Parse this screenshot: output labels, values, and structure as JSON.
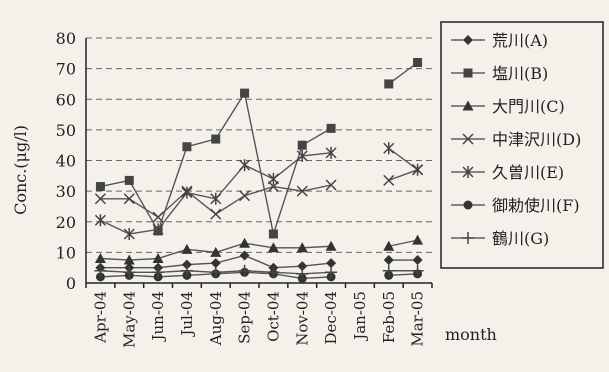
{
  "chart_data": {
    "type": "line",
    "ylabel": "Conc.(μg/l)",
    "xlabel": "month",
    "ylim": [
      0,
      80
    ],
    "yticks": [
      0,
      10,
      20,
      30,
      40,
      50,
      60,
      70,
      80
    ],
    "grid": true,
    "legend_position": "right",
    "categories": [
      "Apr-04",
      "May-04",
      "Jun-04",
      "Jul-04",
      "Aug-04",
      "Sep-04",
      "Oct-04",
      "Nov-04",
      "Dec-04",
      "Jan-05",
      "Feb-05",
      "Mar-05"
    ],
    "series": [
      {
        "name": "荒川(A)",
        "marker": "diamond",
        "values": [
          5,
          5,
          5,
          6,
          6.5,
          9,
          5,
          5.5,
          6.5,
          null,
          7.5,
          7.5
        ]
      },
      {
        "name": "塩川(B)",
        "marker": "square",
        "values": [
          31.5,
          33.5,
          17,
          44.5,
          47,
          62,
          16,
          45,
          50.5,
          null,
          65,
          72
        ]
      },
      {
        "name": "大門川(C)",
        "marker": "triangle",
        "values": [
          8,
          7.5,
          8,
          11,
          10,
          13,
          11.5,
          11.5,
          12,
          null,
          12,
          14
        ]
      },
      {
        "name": "中津沢川(D)",
        "marker": "x",
        "values": [
          27.5,
          27.5,
          21.5,
          30,
          22.5,
          28.5,
          31.5,
          30,
          32,
          null,
          33.5,
          37
        ]
      },
      {
        "name": "久曽川(E)",
        "marker": "asterisk",
        "values": [
          20.5,
          16,
          17.5,
          29.5,
          27.5,
          38.5,
          34,
          41.5,
          42.5,
          null,
          44,
          37
        ]
      },
      {
        "name": "御勅使川(F)",
        "marker": "circle",
        "values": [
          2,
          2.5,
          2,
          2.5,
          3,
          3.5,
          3,
          1.5,
          2,
          null,
          2.5,
          3
        ]
      },
      {
        "name": "鶴川(G)",
        "marker": "plus",
        "values": [
          4,
          3.5,
          3.5,
          4,
          3.5,
          4,
          3.5,
          3,
          3.5,
          null,
          4,
          4
        ]
      }
    ]
  }
}
